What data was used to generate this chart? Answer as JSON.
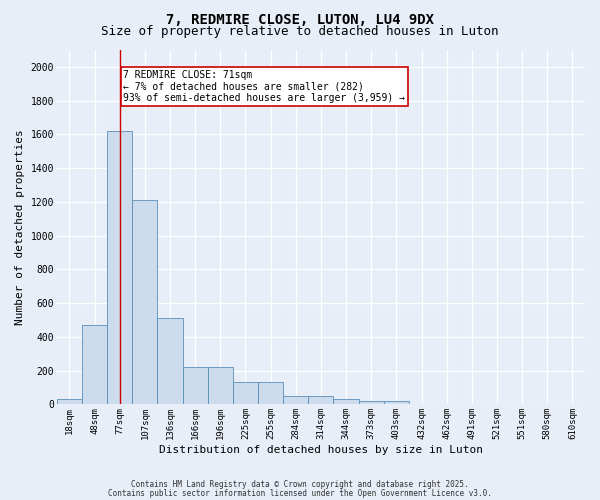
{
  "title_line1": "7, REDMIRE CLOSE, LUTON, LU4 9DX",
  "title_line2": "Size of property relative to detached houses in Luton",
  "xlabel": "Distribution of detached houses by size in Luton",
  "ylabel": "Number of detached properties",
  "categories": [
    "18sqm",
    "48sqm",
    "77sqm",
    "107sqm",
    "136sqm",
    "166sqm",
    "196sqm",
    "225sqm",
    "255sqm",
    "284sqm",
    "314sqm",
    "344sqm",
    "373sqm",
    "403sqm",
    "432sqm",
    "462sqm",
    "491sqm",
    "521sqm",
    "551sqm",
    "580sqm",
    "610sqm"
  ],
  "values": [
    30,
    470,
    1620,
    1210,
    510,
    220,
    220,
    130,
    130,
    50,
    50,
    30,
    20,
    20,
    0,
    0,
    0,
    0,
    0,
    0,
    0
  ],
  "bar_color": "#ccdcec",
  "bar_edge_color": "#5b8db8",
  "redline_x": 2.0,
  "annotation_title": "7 REDMIRE CLOSE: 71sqm",
  "annotation_line1": "← 7% of detached houses are smaller (282)",
  "annotation_line2": "93% of semi-detached houses are larger (3,959) →",
  "ylim": [
    0,
    2100
  ],
  "yticks": [
    0,
    200,
    400,
    600,
    800,
    1000,
    1200,
    1400,
    1600,
    1800,
    2000
  ],
  "footnote_line1": "Contains HM Land Registry data © Crown copyright and database right 2025.",
  "footnote_line2": "Contains public sector information licensed under the Open Government Licence v3.0.",
  "bg_color": "#e8eef8",
  "plot_bg_color": "#e8eef8",
  "annotation_box_color": "#ffffff",
  "annotation_box_edge": "#cc0000",
  "redline_color": "#cc0000",
  "title_fontsize": 10,
  "subtitle_fontsize": 9,
  "tick_fontsize": 6.5,
  "ylabel_fontsize": 8,
  "xlabel_fontsize": 8,
  "annotation_fontsize": 7,
  "footnote_fontsize": 5.5
}
